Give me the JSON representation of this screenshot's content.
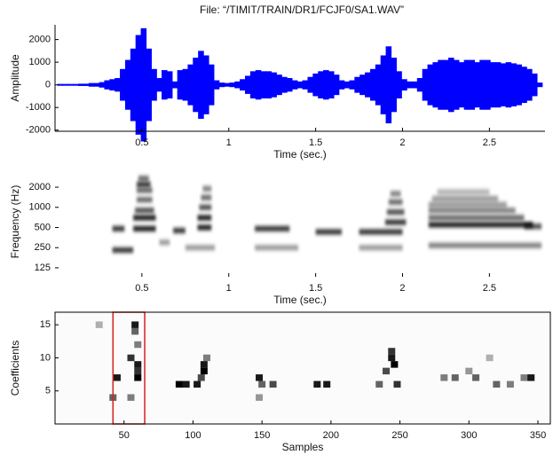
{
  "chart_data": [
    {
      "type": "waveform",
      "title": "File: “/TIMIT/TRAIN/DR1/FCJF0/SA1.WAV”",
      "xlabel": "Time (sec.)",
      "ylabel": "Amplitude",
      "color": "#0000ff",
      "xlim": [
        0,
        2.82
      ],
      "ylim": [
        -2050,
        2650
      ],
      "xticks": [
        0.5,
        1,
        1.5,
        2,
        2.5
      ],
      "yticks": [
        -2000,
        -1000,
        0,
        1000,
        2000
      ],
      "x": [
        0.03,
        0.06,
        0.09,
        0.12,
        0.15,
        0.18,
        0.21,
        0.24,
        0.27,
        0.3,
        0.33,
        0.36,
        0.39,
        0.42,
        0.45,
        0.48,
        0.51,
        0.54,
        0.57,
        0.6,
        0.63,
        0.66,
        0.69,
        0.72,
        0.75,
        0.78,
        0.81,
        0.84,
        0.87,
        0.9,
        0.93,
        0.96,
        0.99,
        1.02,
        1.05,
        1.08,
        1.11,
        1.14,
        1.17,
        1.2,
        1.23,
        1.26,
        1.29,
        1.32,
        1.35,
        1.38,
        1.41,
        1.44,
        1.47,
        1.5,
        1.53,
        1.56,
        1.59,
        1.62,
        1.65,
        1.68,
        1.71,
        1.74,
        1.77,
        1.8,
        1.83,
        1.86,
        1.89,
        1.92,
        1.95,
        1.98,
        2.01,
        2.04,
        2.07,
        2.1,
        2.13,
        2.16,
        2.19,
        2.22,
        2.25,
        2.28,
        2.31,
        2.34,
        2.37,
        2.4,
        2.43,
        2.46,
        2.49,
        2.52,
        2.55,
        2.58,
        2.61,
        2.64,
        2.67,
        2.7,
        2.73,
        2.76,
        2.79
      ],
      "values": [
        40,
        40,
        40,
        40,
        50,
        50,
        80,
        80,
        120,
        200,
        250,
        300,
        700,
        1100,
        1600,
        2200,
        2500,
        1600,
        700,
        300,
        650,
        600,
        150,
        650,
        700,
        900,
        1200,
        1500,
        1300,
        900,
        200,
        100,
        80,
        100,
        150,
        250,
        400,
        600,
        650,
        600,
        600,
        550,
        450,
        350,
        300,
        200,
        150,
        200,
        350,
        500,
        600,
        650,
        600,
        450,
        200,
        150,
        200,
        350,
        450,
        550,
        700,
        900,
        1300,
        1700,
        1200,
        600,
        250,
        150,
        150,
        300,
        700,
        900,
        1000,
        1100,
        1100,
        1200,
        1100,
        1000,
        1100,
        1100,
        1000,
        1100,
        1100,
        1000,
        1000,
        950,
        1000,
        950,
        900,
        800,
        700,
        500,
        100
      ]
    },
    {
      "type": "spectrogram",
      "xlabel": "Time (sec.)",
      "ylabel": "Frequency (Hz)",
      "ylog": true,
      "xlim": [
        0,
        2.82
      ],
      "ylim": [
        92,
        4040
      ],
      "xticks": [
        0.5,
        1,
        1.5,
        2,
        2.5
      ],
      "yticks": [
        125,
        250,
        500,
        1000,
        2000
      ],
      "segments": [
        {
          "t": [
            0.33,
            0.4
          ],
          "f": 480,
          "level": 0.8
        },
        {
          "t": [
            0.33,
            0.45
          ],
          "f": 230,
          "level": 0.8
        },
        {
          "t": [
            0.45,
            0.58
          ],
          "f": 480,
          "level": 0.9
        },
        {
          "t": [
            0.45,
            0.58
          ],
          "f": 700,
          "level": 0.9
        },
        {
          "t": [
            0.46,
            0.57
          ],
          "f": 900,
          "level": 0.7
        },
        {
          "t": [
            0.47,
            0.56
          ],
          "f": 1300,
          "level": 0.6
        },
        {
          "t": [
            0.47,
            0.56
          ],
          "f": 1800,
          "level": 0.6
        },
        {
          "t": [
            0.47,
            0.55
          ],
          "f": 2200,
          "level": 0.8
        },
        {
          "t": [
            0.48,
            0.54
          ],
          "f": 2700,
          "level": 0.6
        },
        {
          "t": [
            0.6,
            0.66
          ],
          "f": 300,
          "level": 0.4
        },
        {
          "t": [
            0.68,
            0.75
          ],
          "f": 450,
          "level": 0.8
        },
        {
          "t": [
            0.82,
            0.9
          ],
          "f": 500,
          "level": 0.9
        },
        {
          "t": [
            0.82,
            0.9
          ],
          "f": 700,
          "level": 0.9
        },
        {
          "t": [
            0.83,
            0.9
          ],
          "f": 1000,
          "level": 0.7
        },
        {
          "t": [
            0.84,
            0.9
          ],
          "f": 1400,
          "level": 0.6
        },
        {
          "t": [
            0.85,
            0.9
          ],
          "f": 1900,
          "level": 0.5
        },
        {
          "t": [
            0.75,
            0.92
          ],
          "f": 250,
          "level": 0.4
        },
        {
          "t": [
            1.15,
            1.35
          ],
          "f": 480,
          "level": 0.8
        },
        {
          "t": [
            1.15,
            1.4
          ],
          "f": 250,
          "level": 0.4
        },
        {
          "t": [
            1.5,
            1.65
          ],
          "f": 430,
          "level": 0.8
        },
        {
          "t": [
            1.75,
            2.0
          ],
          "f": 430,
          "level": 0.8
        },
        {
          "t": [
            1.75,
            2.0
          ],
          "f": 250,
          "level": 0.4
        },
        {
          "t": [
            1.9,
            2.02
          ],
          "f": 600,
          "level": 0.8
        },
        {
          "t": [
            1.91,
            2.01
          ],
          "f": 850,
          "level": 0.7
        },
        {
          "t": [
            1.92,
            2.0
          ],
          "f": 1200,
          "level": 0.6
        },
        {
          "t": [
            1.93,
            1.99
          ],
          "f": 1600,
          "level": 0.5
        },
        {
          "t": [
            2.15,
            2.75
          ],
          "f": 550,
          "level": 0.9
        },
        {
          "t": [
            2.15,
            2.7
          ],
          "f": 700,
          "level": 0.6
        },
        {
          "t": [
            2.15,
            2.65
          ],
          "f": 900,
          "level": 0.5
        },
        {
          "t": [
            2.15,
            2.6
          ],
          "f": 1100,
          "level": 0.4
        },
        {
          "t": [
            2.17,
            2.55
          ],
          "f": 1350,
          "level": 0.4
        },
        {
          "t": [
            2.2,
            2.5
          ],
          "f": 1700,
          "level": 0.3
        },
        {
          "t": [
            2.15,
            2.8
          ],
          "f": 270,
          "level": 0.5
        },
        {
          "t": [
            2.7,
            2.8
          ],
          "f": 520,
          "level": 0.7
        }
      ]
    },
    {
      "type": "matrix",
      "xlabel": "Samples",
      "ylabel": "Coefficients",
      "xlim": [
        0,
        359
      ],
      "ylim": [
        0,
        16.9
      ],
      "xticks": [
        50,
        100,
        150,
        200,
        250,
        300,
        350
      ],
      "yticks": [
        5,
        10,
        15
      ],
      "cells": [
        [
          58,
          15,
          0.9
        ],
        [
          58,
          14,
          0.6
        ],
        [
          60,
          12,
          0.5
        ],
        [
          55,
          10,
          0.8
        ],
        [
          60,
          9,
          0.9
        ],
        [
          60,
          8,
          0.8
        ],
        [
          45,
          7,
          0.9
        ],
        [
          60,
          7,
          1
        ],
        [
          42,
          4,
          0.6
        ],
        [
          55,
          4,
          0.5
        ],
        [
          90,
          6,
          1
        ],
        [
          95,
          6,
          0.9
        ],
        [
          108,
          9,
          0.9
        ],
        [
          108,
          8,
          1
        ],
        [
          106,
          7,
          0.7
        ],
        [
          103,
          6,
          0.9
        ],
        [
          110,
          10,
          0.5
        ],
        [
          148,
          7,
          0.9
        ],
        [
          150,
          6,
          0.6
        ],
        [
          158,
          6,
          0.7
        ],
        [
          148,
          4,
          0.4
        ],
        [
          190,
          6,
          0.9
        ],
        [
          197,
          6,
          0.9
        ],
        [
          244,
          11,
          0.8
        ],
        [
          244,
          10,
          0.9
        ],
        [
          246,
          9,
          1
        ],
        [
          240,
          8,
          0.7
        ],
        [
          235,
          6,
          0.6
        ],
        [
          248,
          6,
          0.8
        ],
        [
          282,
          7,
          0.5
        ],
        [
          290,
          7,
          0.6
        ],
        [
          300,
          8,
          0.4
        ],
        [
          305,
          7,
          0.6
        ],
        [
          315,
          10,
          0.3
        ],
        [
          320,
          6,
          0.6
        ],
        [
          330,
          6,
          0.5
        ],
        [
          345,
          7,
          0.9
        ],
        [
          340,
          7,
          0.5
        ],
        [
          32,
          15,
          0.3
        ]
      ],
      "highlight": {
        "x": [
          42,
          65
        ],
        "color": "#d62020"
      }
    }
  ]
}
